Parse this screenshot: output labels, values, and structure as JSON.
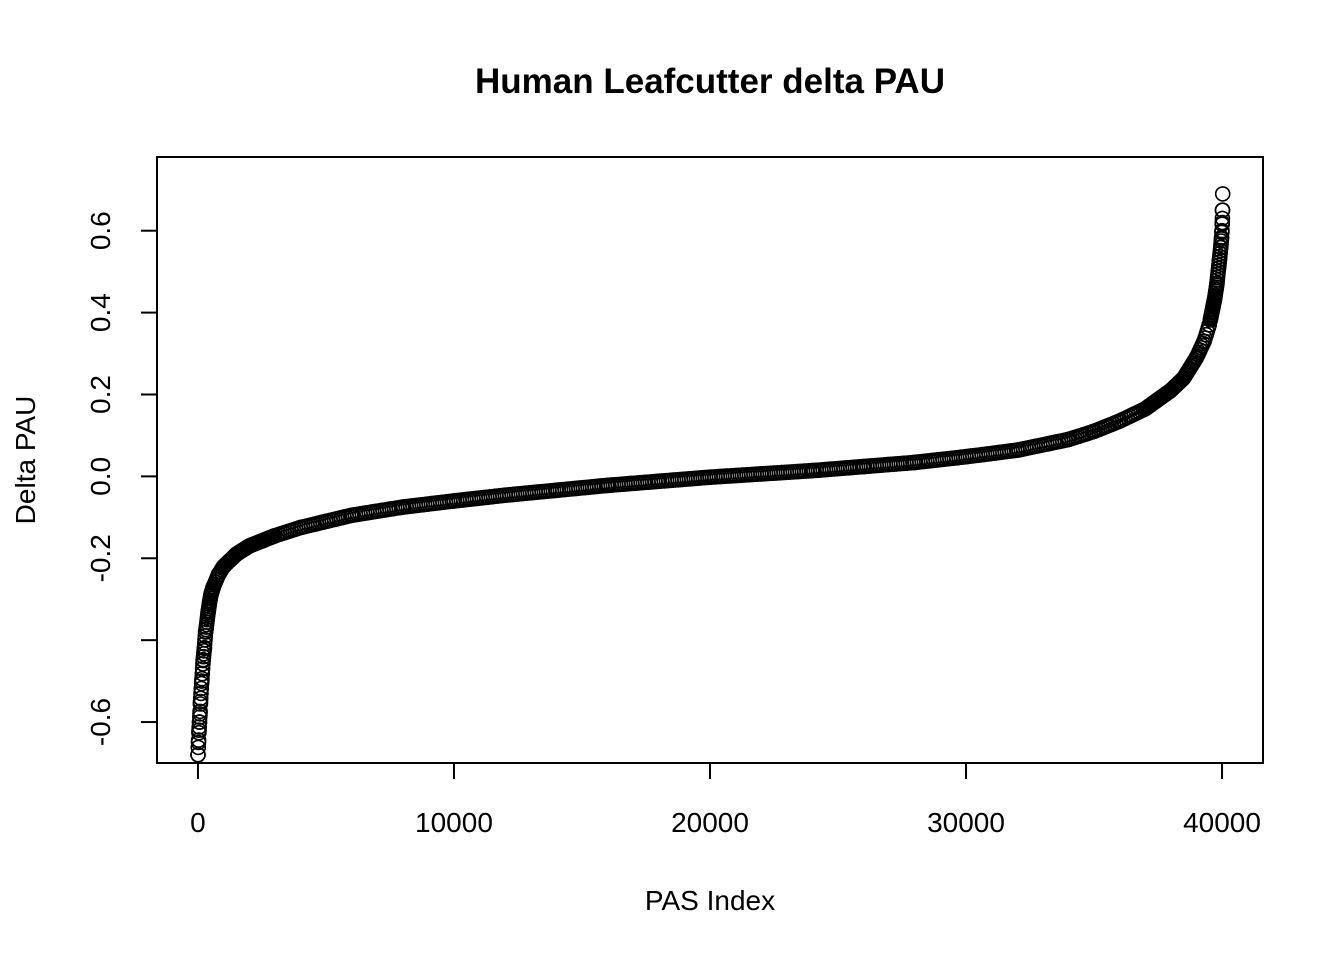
{
  "chart_data": {
    "type": "scatter",
    "title": "Human Leafcutter delta PAU",
    "xlabel": "PAS Index",
    "ylabel": "Delta PAU",
    "xlim": [
      -1600,
      41600
    ],
    "ylim": [
      -0.7,
      0.78
    ],
    "x_ticks": [
      0,
      10000,
      20000,
      30000,
      40000
    ],
    "x_tick_labels": [
      "0",
      "10000",
      "20000",
      "30000",
      "40000"
    ],
    "y_ticks": [
      -0.6,
      -0.4,
      -0.2,
      0.0,
      0.2,
      0.4,
      0.6
    ],
    "y_tick_labels": [
      "-0.6",
      "",
      "-0.2",
      "0.0",
      "0.2",
      "0.4",
      "0.6"
    ],
    "grid": false,
    "marker": "open-circle",
    "n_points": 40025,
    "series": [
      {
        "x": [
          0,
          20,
          40,
          60,
          80,
          100,
          150,
          200,
          250,
          300,
          400,
          500,
          600,
          800,
          1000,
          1500,
          2000,
          3000,
          4000,
          5000,
          6000,
          8000,
          10000,
          12000,
          14000,
          16000,
          18000,
          20000,
          22000,
          24000,
          26000,
          28000,
          30000,
          32000,
          34000,
          35000,
          36000,
          37000,
          38000,
          38500,
          39000,
          39300,
          39500,
          39700,
          39800,
          39900,
          39950,
          39980,
          40000,
          40010,
          40015,
          40020,
          40025
        ],
        "y": [
          -0.68,
          -0.65,
          -0.62,
          -0.6,
          -0.58,
          -0.55,
          -0.5,
          -0.45,
          -0.42,
          -0.38,
          -0.33,
          -0.29,
          -0.27,
          -0.24,
          -0.22,
          -0.19,
          -0.17,
          -0.145,
          -0.125,
          -0.11,
          -0.095,
          -0.075,
          -0.06,
          -0.046,
          -0.034,
          -0.022,
          -0.012,
          -0.002,
          0.006,
          0.014,
          0.024,
          0.034,
          0.048,
          0.064,
          0.09,
          0.11,
          0.135,
          0.165,
          0.21,
          0.24,
          0.29,
          0.33,
          0.37,
          0.43,
          0.47,
          0.53,
          0.56,
          0.58,
          0.6,
          0.62,
          0.63,
          0.65,
          0.69
        ]
      }
    ]
  }
}
